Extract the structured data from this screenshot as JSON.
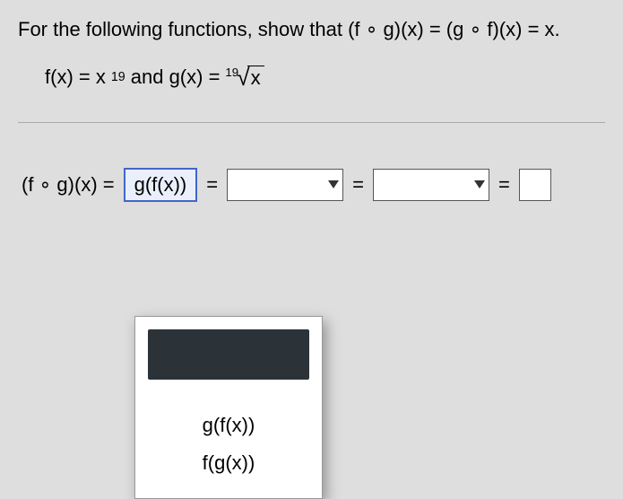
{
  "colors": {
    "page_bg": "#dedede",
    "text": "#000000",
    "select_border": "#4266c9",
    "select_bg": "#eaf0fb",
    "box_border": "#555555",
    "box_bg": "#ffffff",
    "panel_bg": "#ffffff",
    "panel_shadow": "rgba(0,0,0,0.35)",
    "highlight_option_bg": "#2c3338",
    "divider": "#aaaaaa"
  },
  "question": "For the following functions, show that (f ∘ g)(x) = (g ∘ f)(x) = x.",
  "funcs": {
    "f_prefix": "f(x) = x",
    "f_exp": "19",
    "and": " and g(x) = ",
    "root_index": "19",
    "radical": "√",
    "radicand": "x"
  },
  "equation": {
    "lhs": "(f ∘ g)(x) = ",
    "selected": "g(f(x))",
    "eq": " = ",
    "drop1": "",
    "drop2": "",
    "final": ""
  },
  "dropdown": {
    "option_blank_selected": "",
    "option1": "g(f(x))",
    "option2": "f(g(x))"
  }
}
